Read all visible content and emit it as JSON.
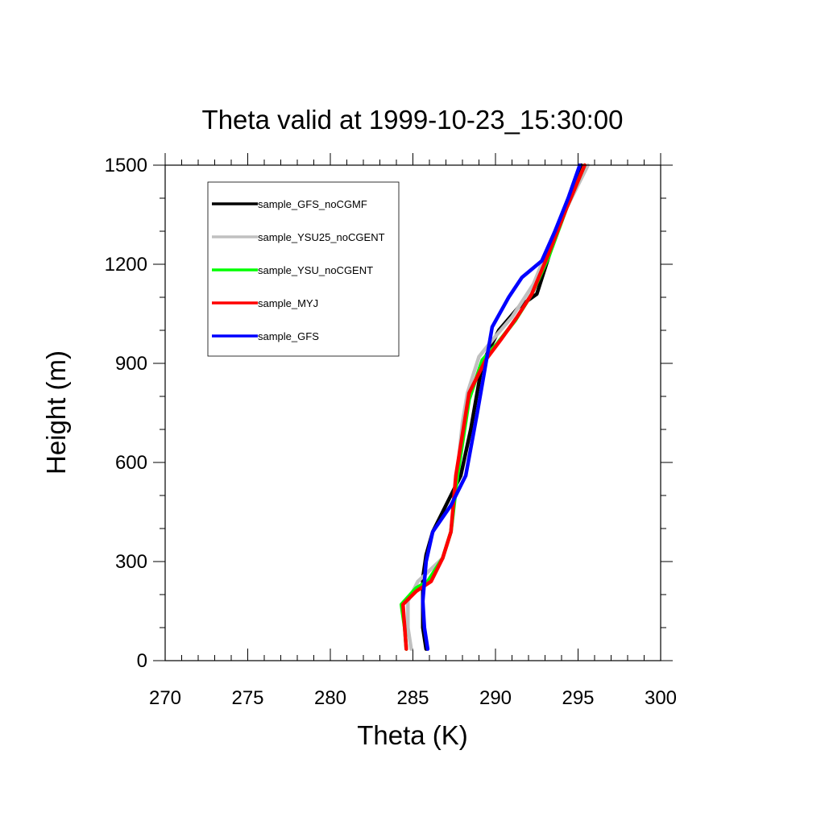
{
  "chart_data": {
    "type": "line",
    "title": "Theta valid at 1999-10-23_15:30:00",
    "xlabel": "Theta (K)",
    "ylabel": "Height (m)",
    "xlim": [
      270,
      300
    ],
    "ylim": [
      0,
      1500
    ],
    "xticks": [
      "270",
      "275",
      "280",
      "285",
      "290",
      "295",
      "300"
    ],
    "yticks": [
      "0",
      "300",
      "600",
      "900",
      "1200",
      "1500"
    ],
    "legend_position": "top-left",
    "grid": false,
    "series": [
      {
        "name": "sample_GFS_noCGMF",
        "color": "#000000",
        "x": [
          285.8,
          285.6,
          285.6,
          285.6,
          285.8,
          286.2,
          287.0,
          287.9,
          288.5,
          289.2,
          290.2,
          291.4,
          292.5,
          293.4,
          294.3,
          295.2
        ],
        "y": [
          35,
          100,
          180,
          250,
          320,
          390,
          470,
          560,
          700,
          900,
          1000,
          1070,
          1110,
          1250,
          1380,
          1500
        ]
      },
      {
        "name": "sample_YSU25_noCGENT",
        "color": "#c0c0c0",
        "x": [
          284.9,
          284.7,
          284.7,
          285.3,
          286.8,
          287.3,
          287.6,
          288.0,
          288.3,
          289.0,
          289.8,
          291.0,
          292.3,
          293.6,
          294.6,
          295.6
        ],
        "y": [
          35,
          100,
          180,
          240,
          310,
          390,
          530,
          720,
          810,
          920,
          970,
          1040,
          1140,
          1300,
          1400,
          1500
        ]
      },
      {
        "name": "sample_YSU_noCGENT",
        "color": "#00ff00",
        "x": [
          284.6,
          284.5,
          284.3,
          285.2,
          285.9,
          286.8,
          287.3,
          287.7,
          288.4,
          289.2,
          290.1,
          291.2,
          292.2,
          293.2,
          294.3,
          295.4
        ],
        "y": [
          35,
          100,
          170,
          220,
          240,
          310,
          390,
          560,
          790,
          910,
          960,
          1030,
          1110,
          1220,
          1370,
          1500
        ]
      },
      {
        "name": "sample_MYJ",
        "color": "#ff0000",
        "x": [
          284.6,
          284.5,
          284.4,
          285.2,
          286.1,
          286.8,
          287.3,
          287.6,
          288.4,
          289.4,
          290.3,
          291.3,
          292.2,
          293.2,
          294.3,
          295.4
        ],
        "y": [
          35,
          100,
          170,
          210,
          240,
          310,
          390,
          560,
          810,
          910,
          970,
          1040,
          1110,
          1230,
          1370,
          1500
        ]
      },
      {
        "name": "sample_GFS",
        "color": "#0000ff",
        "x": [
          285.9,
          285.7,
          285.6,
          285.8,
          286.2,
          287.3,
          288.2,
          288.9,
          289.8,
          290.8,
          291.6,
          292.8,
          293.6,
          294.4,
          295.1
        ],
        "y": [
          35,
          100,
          180,
          300,
          390,
          470,
          560,
          750,
          1010,
          1100,
          1160,
          1210,
          1300,
          1400,
          1500
        ]
      }
    ]
  }
}
